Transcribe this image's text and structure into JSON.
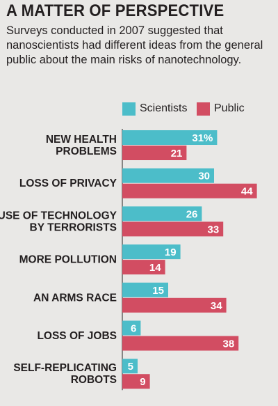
{
  "header": {
    "title": "A MATTER OF PERSPECTIVE",
    "subtitle": "Surveys conducted in 2007 suggested that nanoscientists had different ideas from the general public about the main risks of nanotechnology."
  },
  "colors": {
    "scientists": "#4cbdc9",
    "public": "#d24d62",
    "background": "#e9e8e6",
    "axis": "#231f20"
  },
  "chart_data": {
    "type": "bar",
    "orientation": "horizontal",
    "categories": [
      [
        "NEW HEALTH",
        "PROBLEMS"
      ],
      [
        "LOSS OF PRIVACY"
      ],
      [
        "USE OF TECHNOLOGY",
        "BY TERRORISTS"
      ],
      [
        "MORE POLLUTION"
      ],
      [
        "AN ARMS RACE"
      ],
      [
        "LOSS OF JOBS"
      ],
      [
        "SELF-REPLICATING",
        "ROBOTS"
      ]
    ],
    "series": [
      {
        "name": "Scientists",
        "values": [
          31,
          30,
          26,
          19,
          15,
          6,
          5
        ],
        "labels": [
          "31%",
          "30",
          "26",
          "19",
          "15",
          "6",
          "5"
        ]
      },
      {
        "name": "Public",
        "values": [
          21,
          44,
          33,
          14,
          34,
          38,
          9
        ],
        "labels": [
          "21",
          "44",
          "33",
          "14",
          "34",
          "38",
          "9"
        ]
      }
    ],
    "unit": "%",
    "legend_position": "top",
    "grid": false
  }
}
